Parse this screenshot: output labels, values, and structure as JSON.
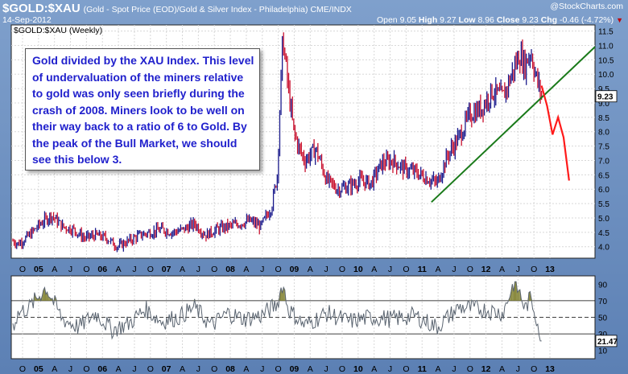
{
  "header": {
    "symbol": "$GOLD:$XAU",
    "description": "(Gold - Spot Price (EOD)/Gold & Silver Index - Philadelphia) CME/INDX",
    "date": "14-Sep-2012",
    "brand": "@StockCharts.com",
    "ohlc": {
      "open_label": "Open",
      "open": "9.05",
      "high_label": "High",
      "high": "9.27",
      "low_label": "Low",
      "low": "8.96",
      "close_label": "Close",
      "close": "9.23",
      "chg_label": "Chg",
      "chg": "-0.46 (-4.72%)"
    }
  },
  "annotation": "Gold divided by the XAU Index.  This level of undervaluation of the miners relative to gold was only seen briefly during the crash of 2008.  Miners look to be well on their way back to a ratio of 6 to Gold.  By the peak of the Bull Market, we should see this below 3.",
  "colors": {
    "up": "#1a1a8c",
    "down": "#c8102e",
    "trend": "#1a7a1a",
    "projection": "#ff1a1a",
    "rsi": "#5a6470",
    "rsi_fill": "#8a8a40"
  },
  "chart_data": [
    {
      "type": "line",
      "panel": "price",
      "title": "$GOLD:$XAU (Weekly)",
      "ylim": [
        3.6,
        11.6
      ],
      "yticks": [
        4.0,
        4.5,
        5.0,
        5.5,
        6.0,
        6.5,
        7.0,
        7.5,
        8.0,
        8.5,
        9.0,
        9.5,
        10.0,
        10.5,
        11.0,
        11.5
      ],
      "last_value": "9.23",
      "x_axis_labels": [
        "O",
        "05",
        "A",
        "J",
        "O",
        "06",
        "A",
        "J",
        "O",
        "07",
        "A",
        "J",
        "O",
        "08",
        "A",
        "J",
        "O",
        "09",
        "A",
        "J",
        "O",
        "10",
        "A",
        "J",
        "O",
        "11",
        "A",
        "J",
        "O",
        "12",
        "A",
        "J",
        "O",
        "13"
      ],
      "x": [
        "2004-09",
        "2004-10",
        "2004-12",
        "2005-02",
        "2005-04",
        "2005-06",
        "2005-08",
        "2005-10",
        "2005-12",
        "2006-02",
        "2006-04",
        "2006-06",
        "2006-08",
        "2006-10",
        "2006-12",
        "2007-02",
        "2007-04",
        "2007-06",
        "2007-08",
        "2007-10",
        "2007-12",
        "2008-02",
        "2008-04",
        "2008-06",
        "2008-08",
        "2008-09",
        "2008-10",
        "2008-11",
        "2008-12",
        "2009-01",
        "2009-02",
        "2009-04",
        "2009-06",
        "2009-08",
        "2009-10",
        "2009-12",
        "2010-02",
        "2010-04",
        "2010-06",
        "2010-08",
        "2010-10",
        "2010-12",
        "2011-01",
        "2011-02",
        "2011-04",
        "2011-06",
        "2011-08",
        "2011-10",
        "2011-12",
        "2012-02",
        "2012-04",
        "2012-05",
        "2012-06",
        "2012-07",
        "2012-08",
        "2012-09"
      ],
      "series": [
        {
          "values": [
            4.2,
            4.1,
            4.4,
            4.8,
            5.1,
            4.7,
            4.6,
            4.3,
            4.4,
            4.3,
            4.0,
            4.2,
            4.4,
            4.5,
            4.6,
            4.5,
            4.6,
            4.8,
            4.4,
            4.6,
            4.7,
            4.8,
            4.9,
            4.7,
            5.4,
            6.5,
            11.3,
            9.5,
            8.0,
            7.4,
            7.0,
            7.4,
            6.3,
            6.0,
            6.1,
            6.3,
            6.2,
            6.9,
            7.0,
            6.7,
            6.6,
            6.4,
            6.3,
            6.2,
            7.2,
            7.8,
            8.6,
            8.8,
            9.4,
            9.2,
            10.2,
            10.7,
            10.3,
            10.8,
            9.9,
            9.23
          ]
        }
      ],
      "trendline": {
        "from": {
          "x": "2011-01",
          "y": 5.55
        },
        "to": {
          "x": "2012-12",
          "y": 10.95
        }
      },
      "projection": {
        "x": [
          "2012-09",
          "2012-10",
          "2012-11",
          "2012-12",
          "2013-01",
          "2013-02"
        ],
        "values": [
          9.6,
          8.9,
          7.9,
          8.5,
          7.8,
          6.3
        ]
      }
    },
    {
      "type": "line",
      "panel": "rsi",
      "ylim": [
        0,
        100
      ],
      "yticks": [
        10,
        30,
        50,
        70,
        90
      ],
      "reference_lines": [
        30,
        50,
        70
      ],
      "last_value": "21.47",
      "x_axis_labels": [
        "O",
        "05",
        "A",
        "J",
        "O",
        "06",
        "A",
        "J",
        "O",
        "07",
        "A",
        "J",
        "O",
        "08",
        "A",
        "J",
        "O",
        "09",
        "A",
        "J",
        "O",
        "10",
        "A",
        "J",
        "O",
        "11",
        "A",
        "J",
        "O",
        "12",
        "A",
        "J",
        "O",
        "13"
      ],
      "x": [
        "2004-09",
        "2004-10",
        "2004-12",
        "2005-03",
        "2005-06",
        "2005-09",
        "2005-12",
        "2006-03",
        "2006-06",
        "2006-09",
        "2006-12",
        "2007-03",
        "2007-06",
        "2007-09",
        "2007-12",
        "2008-03",
        "2008-06",
        "2008-09",
        "2008-10",
        "2008-11",
        "2009-02",
        "2009-06",
        "2009-10",
        "2010-02",
        "2010-06",
        "2010-10",
        "2011-02",
        "2011-06",
        "2011-10",
        "2012-02",
        "2012-04",
        "2012-05",
        "2012-06",
        "2012-07",
        "2012-08",
        "2012-09"
      ],
      "series": [
        {
          "values": [
            40,
            55,
            62,
            86,
            48,
            38,
            55,
            35,
            42,
            60,
            45,
            50,
            62,
            40,
            55,
            48,
            52,
            66,
            91,
            60,
            40,
            55,
            45,
            50,
            48,
            52,
            38,
            62,
            60,
            55,
            92,
            80,
            60,
            74,
            52,
            21.47
          ]
        }
      ]
    }
  ]
}
